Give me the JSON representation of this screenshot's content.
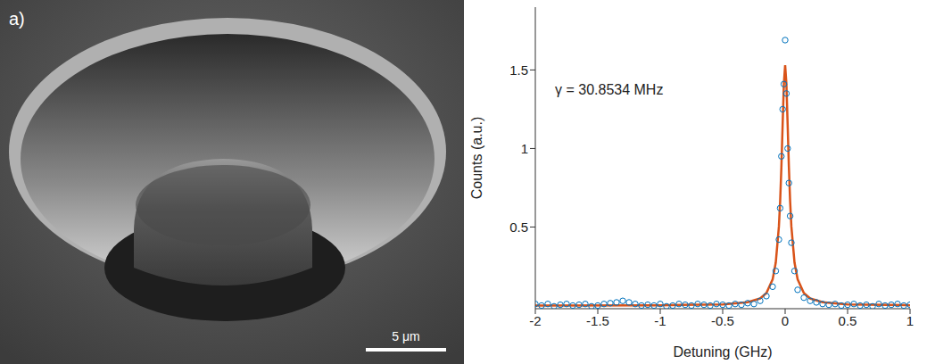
{
  "image": {
    "label": "a)",
    "scale_bar": "5 μm"
  },
  "chart_data": {
    "type": "scatter",
    "annotation": "γ = 30.8534 MHz",
    "x_label": "Detuning (GHz)",
    "y_label": "Counts (a.u.)",
    "xlim": [
      -2,
      1
    ],
    "xticks": [
      -2,
      -1.5,
      -1,
      -0.5,
      0,
      0.5,
      1
    ],
    "ylim": [
      -0.02,
      1.9
    ],
    "yticks": [
      0.5,
      1,
      1.5
    ],
    "grid": false,
    "series": [
      {
        "type": "scatter",
        "color": "#0072bd",
        "marker": "circle",
        "x": [
          -2,
          -1.95,
          -1.9,
          -1.85,
          -1.8,
          -1.75,
          -1.7,
          -1.65,
          -1.6,
          -1.55,
          -1.5,
          -1.45,
          -1.4,
          -1.35,
          -1.3,
          -1.25,
          -1.2,
          -1.15,
          -1.1,
          -1.05,
          -1,
          -0.95,
          -0.9,
          -0.85,
          -0.8,
          -0.75,
          -0.7,
          -0.65,
          -0.6,
          -0.55,
          -0.5,
          -0.45,
          -0.4,
          -0.35,
          -0.3,
          -0.25,
          -0.2,
          -0.15,
          -0.1,
          -0.075,
          -0.05,
          -0.04,
          -0.03,
          -0.02,
          -0.01,
          0,
          0.01,
          0.02,
          0.03,
          0.04,
          0.05,
          0.075,
          0.1,
          0.15,
          0.2,
          0.25,
          0.3,
          0.35,
          0.4,
          0.45,
          0.5,
          0.55,
          0.6,
          0.65,
          0.7,
          0.75,
          0.8,
          0.85,
          0.9,
          0.95,
          1
        ],
        "values": [
          0.01,
          0,
          0.01,
          -0.005,
          0.005,
          0.01,
          0,
          0.005,
          0.01,
          -0.005,
          0,
          0.01,
          0.015,
          0.02,
          0.03,
          0.02,
          0.01,
          0,
          0.005,
          0,
          0.01,
          -0.005,
          0,
          0.01,
          0.005,
          0,
          0.01,
          0.005,
          0,
          0.01,
          0.005,
          0,
          0.01,
          0.005,
          0.015,
          0.01,
          0.03,
          0.06,
          0.12,
          0.22,
          0.42,
          0.62,
          0.95,
          1.25,
          1.41,
          1.69,
          1.35,
          1,
          0.78,
          0.57,
          0.4,
          0.22,
          0.1,
          0.05,
          0.03,
          0.02,
          0.01,
          0.005,
          0.01,
          0,
          0.005,
          0.01,
          0,
          0.005,
          -0.005,
          0.01,
          0,
          0.005,
          0.01,
          0,
          0.005
        ]
      },
      {
        "type": "line",
        "color": "#d95319",
        "line_style": "solid",
        "x": [
          -2,
          -1,
          -0.5,
          -0.3,
          -0.2,
          -0.15,
          -0.1,
          -0.075,
          -0.05,
          -0.04,
          -0.03,
          -0.02,
          -0.01,
          0,
          0.01,
          0.02,
          0.03,
          0.04,
          0.05,
          0.075,
          0.1,
          0.15,
          0.2,
          0.3,
          0.5,
          1
        ],
        "values": [
          0.0005,
          0.002,
          0.0075,
          0.021,
          0.045,
          0.079,
          0.167,
          0.274,
          0.503,
          0.663,
          0.882,
          1.153,
          1.414,
          1.53,
          1.414,
          1.153,
          0.882,
          0.663,
          0.503,
          0.274,
          0.167,
          0.079,
          0.045,
          0.021,
          0.0075,
          0.002
        ]
      }
    ]
  }
}
